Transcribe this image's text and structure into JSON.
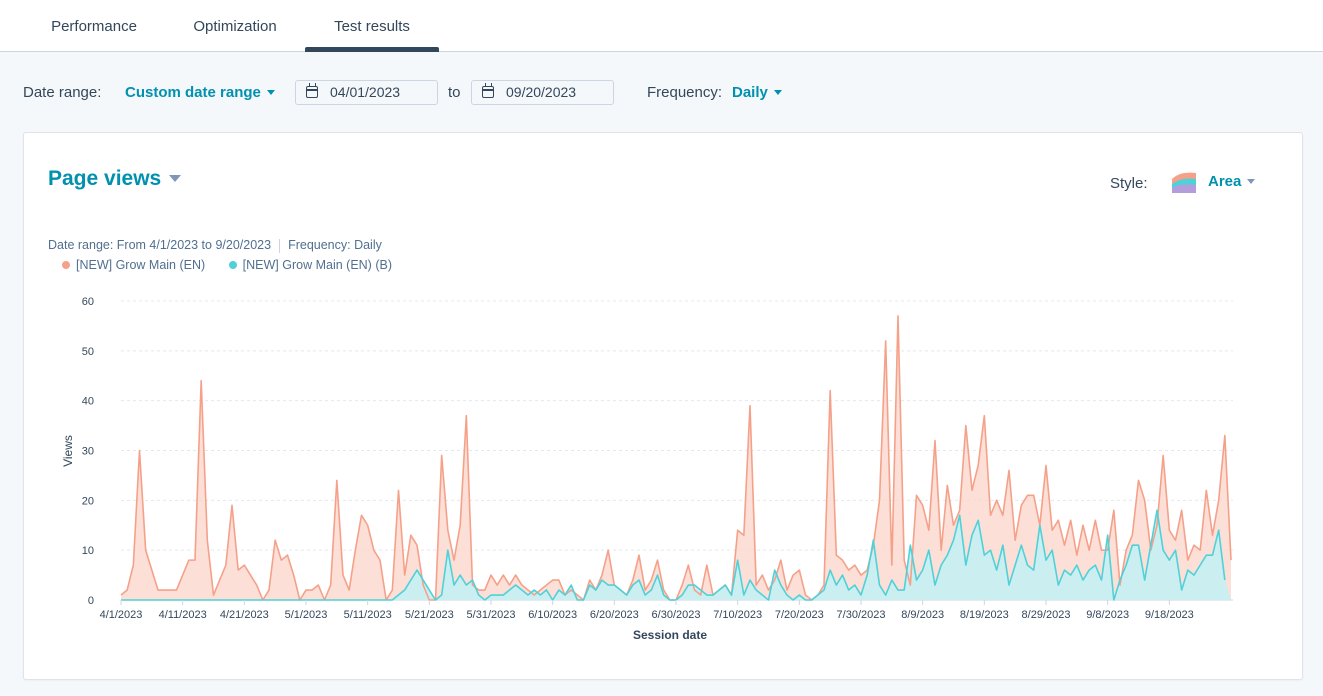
{
  "tabs": [
    {
      "label": "Performance",
      "active": false
    },
    {
      "label": "Optimization",
      "active": false
    },
    {
      "label": "Test results",
      "active": true
    }
  ],
  "filters": {
    "date_range_label": "Date range:",
    "date_range_value": "Custom date range",
    "start_date": "04/01/2023",
    "to_label": "to",
    "end_date": "09/20/2023",
    "frequency_label": "Frequency:",
    "frequency_value": "Daily"
  },
  "card": {
    "title": "Page views",
    "style_label": "Style:",
    "style_value": "Area",
    "meta_date_range": "Date range: From 4/1/2023 to 9/20/2023",
    "meta_frequency": "Frequency: Daily"
  },
  "colors": {
    "accent": "#0091ae",
    "series_a": "#f5a18a",
    "series_a_fill": "#fcd9cf",
    "series_b": "#4fd1d9",
    "series_b_fill": "#c8eff2"
  },
  "chart_data": {
    "type": "area",
    "xlabel": "Session date",
    "ylabel": "Views",
    "ylim": [
      0,
      60
    ],
    "yticks": [
      0,
      10,
      20,
      30,
      40,
      50,
      60
    ],
    "xticks": [
      "4/1/2023",
      "4/11/2023",
      "4/21/2023",
      "5/1/2023",
      "5/11/2023",
      "5/21/2023",
      "5/31/2023",
      "6/10/2023",
      "6/20/2023",
      "6/30/2023",
      "7/10/2023",
      "7/20/2023",
      "7/30/2023",
      "8/9/2023",
      "8/19/2023",
      "8/29/2023",
      "9/8/2023",
      "9/18/2023"
    ],
    "start_date": "2023-04-01",
    "grid": true,
    "legend_position": "top-left",
    "series": [
      {
        "name": "[NEW] Grow Main (EN)",
        "values": [
          1,
          2,
          7,
          30,
          10,
          6,
          2,
          2,
          2,
          2,
          5,
          8,
          8,
          44,
          12,
          1,
          4,
          7,
          19,
          6,
          7,
          5,
          3,
          0,
          2,
          12,
          8,
          9,
          5,
          0,
          2,
          2,
          3,
          0,
          3,
          24,
          5,
          2,
          10,
          17,
          15,
          10,
          8,
          0,
          2,
          22,
          5,
          13,
          11,
          3,
          0,
          0,
          29,
          14,
          8,
          15,
          37,
          3,
          2,
          2,
          5,
          3,
          5,
          3,
          5,
          3,
          2,
          1,
          2,
          3,
          4,
          4,
          1,
          2,
          1,
          0,
          4,
          2,
          5,
          10,
          3,
          2,
          1,
          4,
          9,
          2,
          4,
          8,
          2,
          0,
          0,
          3,
          7,
          2,
          1,
          7,
          1,
          2,
          3,
          1,
          14,
          13,
          39,
          3,
          5,
          2,
          4,
          8,
          2,
          5,
          6,
          1,
          0,
          1,
          3,
          42,
          9,
          8,
          6,
          7,
          5,
          6,
          11,
          20,
          52,
          7,
          57,
          8,
          3,
          21,
          19,
          14,
          32,
          10,
          23,
          15,
          18,
          35,
          22,
          27,
          37,
          17,
          20,
          17,
          26,
          12,
          19,
          21,
          21,
          15,
          27,
          14,
          16,
          11,
          16,
          9,
          15,
          10,
          16,
          10,
          10,
          18,
          3,
          10,
          13,
          24,
          20,
          10,
          15,
          29,
          14,
          12,
          18,
          8,
          11,
          10,
          22,
          13,
          20,
          33,
          8
        ],
        "color": "#f5a18a"
      },
      {
        "name": "[NEW] Grow Main (EN) (B)",
        "values": [
          0,
          0,
          0,
          0,
          0,
          0,
          0,
          0,
          0,
          0,
          0,
          0,
          0,
          0,
          0,
          0,
          0,
          0,
          0,
          0,
          0,
          0,
          0,
          0,
          0,
          0,
          0,
          0,
          0,
          0,
          0,
          0,
          0,
          0,
          0,
          0,
          0,
          0,
          0,
          0,
          0,
          0,
          0,
          0,
          0,
          1,
          2,
          4,
          6,
          4,
          2,
          0,
          1,
          10,
          3,
          5,
          3,
          4,
          1,
          0,
          1,
          1,
          1,
          2,
          3,
          2,
          1,
          2,
          1,
          2,
          0,
          2,
          1,
          3,
          0,
          0,
          3,
          2,
          4,
          3,
          3,
          2,
          1,
          3,
          4,
          1,
          2,
          5,
          1,
          0,
          0,
          1,
          3,
          3,
          2,
          1,
          1,
          2,
          3,
          1,
          8,
          1,
          4,
          2,
          1,
          0,
          6,
          3,
          1,
          0,
          1,
          0,
          0,
          1,
          2,
          6,
          3,
          5,
          2,
          3,
          1,
          5,
          12,
          3,
          1,
          4,
          2,
          2,
          11,
          4,
          6,
          10,
          3,
          7,
          9,
          12,
          17,
          7,
          13,
          16,
          9,
          10,
          6,
          11,
          3,
          7,
          11,
          7,
          6,
          15,
          8,
          10,
          3,
          6,
          5,
          7,
          4,
          6,
          7,
          4,
          13,
          0,
          4,
          7,
          11,
          11,
          4,
          11,
          18,
          10,
          8,
          10,
          2,
          6,
          5,
          7,
          9,
          9,
          14,
          4
        ],
        "color": "#4fd1d9"
      }
    ]
  }
}
